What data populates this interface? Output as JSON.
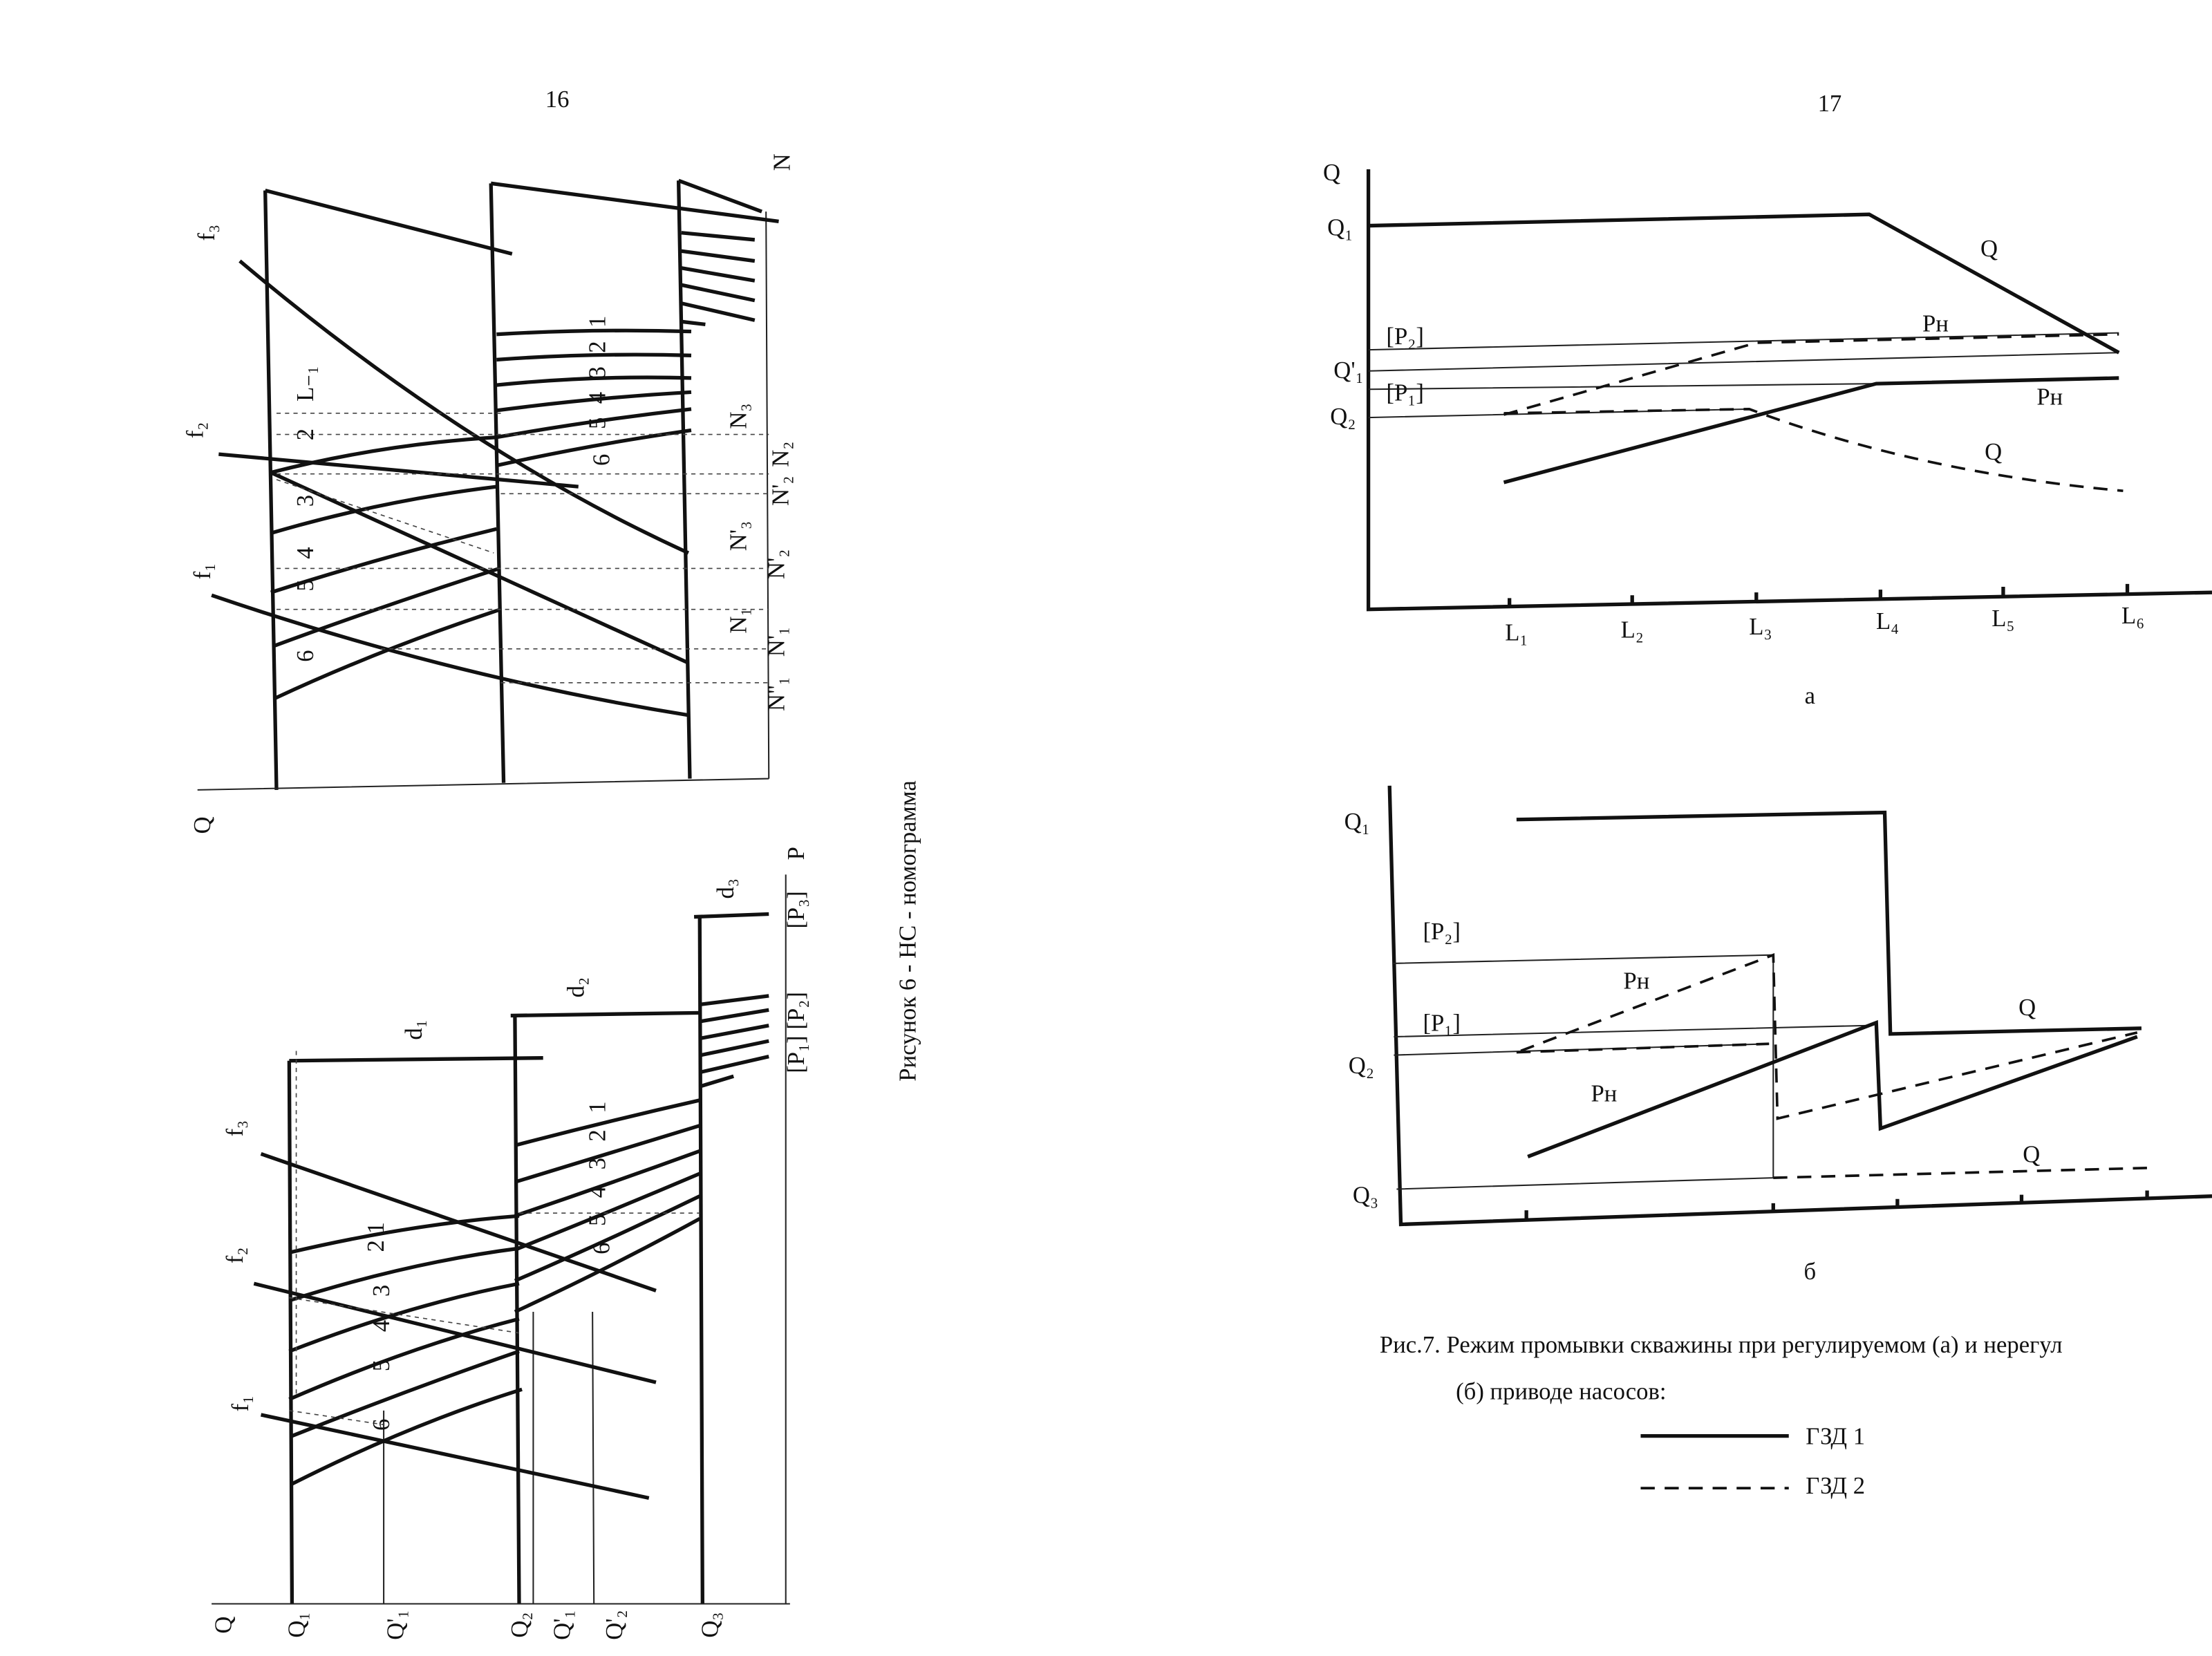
{
  "page16": {
    "number": "16",
    "caption": "Рисунок 6 - НС - номограмма",
    "top_labels": [
      "f₃",
      "f₂",
      "f₁",
      "Q",
      "N",
      "L₋₁",
      "2",
      "3",
      "4",
      "5",
      "6",
      "1",
      "2",
      "3",
      "4",
      "5",
      "6",
      "N₃",
      "N₂",
      "N'₂",
      "N'₃",
      "N'₂",
      "N₁",
      "N'₁",
      "N''₁"
    ],
    "bottom_labels": [
      "Q",
      "Q₁",
      "Q'₁",
      "Q₂",
      "Q'₁",
      "Q'₂",
      "Q₃",
      "d₁",
      "d₂",
      "d₃",
      "P",
      "[P₃]",
      "[P₁] [P₂]",
      "f₃",
      "f₂",
      "f₁",
      "2 1",
      "3",
      "4",
      "5",
      "6",
      "1",
      "2",
      "3",
      "4",
      "5",
      "6"
    ]
  },
  "page17": {
    "number": "17",
    "chart_a": {
      "labels": [
        "Q",
        "Q₁",
        "[P₂]",
        "Q'₁",
        "[P₁]",
        "Q₂",
        "Q",
        "Pн",
        "Pн",
        "Q"
      ],
      "x_ticks": [
        "L₁",
        "L₂",
        "L₃",
        "L₄",
        "L₅",
        "L₆"
      ],
      "sublabel": "а"
    },
    "chart_b": {
      "labels": [
        "Q₁",
        "[P₂]",
        "[P₁]",
        "Q₂",
        "Q₃",
        "Pн",
        "Pн",
        "Q",
        "Q"
      ],
      "sublabel": "б"
    },
    "caption": [
      "Рис.7. Режим промывки скважины при регулируемом (а) и нерегул",
      "(б) приводе насосов:"
    ],
    "legend": [
      "ГЗД 1",
      "ГЗД 2"
    ]
  }
}
